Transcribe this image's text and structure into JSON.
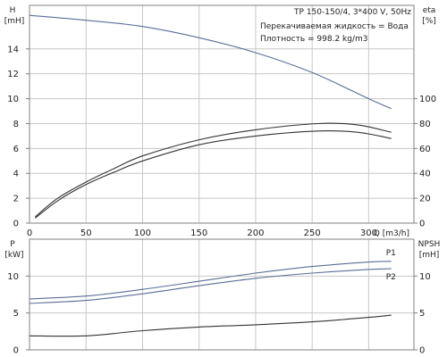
{
  "chart_data": [
    {
      "type": "line",
      "panel": "performance",
      "title": "TP 150-150/4, 3*400 V, 50Hz",
      "annotations": [
        "Перекачиваемая жидкость = Вода",
        "Плотность = 998.2 kg/m3"
      ],
      "xlabel": "Q [m3/h]",
      "xlim": [
        0,
        340
      ],
      "xticks": [
        0,
        50,
        100,
        150,
        200,
        250,
        300
      ],
      "left_axis": {
        "label_top": "H",
        "label_bottom": "[mH]",
        "lim": [
          0,
          17.5
        ],
        "ticks": [
          0,
          2,
          4,
          6,
          8,
          10,
          12,
          14
        ]
      },
      "right_axis": {
        "label_top": "eta",
        "label_bottom": "[%]",
        "lim": [
          0,
          175
        ],
        "ticks": [
          0,
          20,
          40,
          60,
          80,
          100
        ]
      },
      "grid": true,
      "series": [
        {
          "axis": "left",
          "color": "#5a6d96",
          "x": [
            0,
            50,
            100,
            150,
            200,
            250,
            300,
            320
          ],
          "y": [
            16.7,
            16.3,
            15.8,
            14.9,
            13.7,
            12.1,
            10.0,
            9.2
          ]
        },
        {
          "axis": "right",
          "color": "#333333",
          "x": [
            5,
            25,
            50,
            75,
            100,
            150,
            200,
            255,
            290,
            320
          ],
          "y": [
            5,
            20,
            33,
            44,
            54,
            67,
            75,
            80,
            79,
            73
          ]
        },
        {
          "axis": "right",
          "color": "#333333",
          "x": [
            5,
            25,
            50,
            75,
            100,
            150,
            200,
            255,
            290,
            320
          ],
          "y": [
            4,
            18,
            31,
            41,
            50,
            63,
            70,
            74,
            73,
            68
          ]
        }
      ]
    },
    {
      "type": "line",
      "panel": "power",
      "xlim": [
        0,
        340
      ],
      "left_axis": {
        "label_top": "P",
        "label_bottom": "[kW]",
        "lim": [
          0,
          15
        ],
        "ticks": [
          0,
          5,
          10
        ]
      },
      "right_axis": {
        "label_top": "NPSH",
        "label_bottom": "[mH]",
        "lim": [
          0,
          15
        ],
        "ticks": [
          0,
          5,
          10
        ]
      },
      "grid": true,
      "series": [
        {
          "name": "P1",
          "axis": "left",
          "color": "#5a6d96",
          "x": [
            0,
            50,
            100,
            150,
            200,
            250,
            300,
            320
          ],
          "y": [
            6.9,
            7.3,
            8.2,
            9.3,
            10.4,
            11.3,
            11.9,
            12.0
          ]
        },
        {
          "name": "P2",
          "axis": "left",
          "color": "#5a6d96",
          "x": [
            0,
            50,
            100,
            150,
            200,
            250,
            300,
            320
          ],
          "y": [
            6.3,
            6.7,
            7.6,
            8.7,
            9.7,
            10.4,
            10.9,
            11.0
          ]
        },
        {
          "axis": "right",
          "color": "#333333",
          "x": [
            0,
            50,
            100,
            150,
            200,
            250,
            300,
            320
          ],
          "y": [
            1.9,
            1.9,
            2.6,
            3.1,
            3.4,
            3.8,
            4.4,
            4.7
          ]
        }
      ]
    }
  ]
}
